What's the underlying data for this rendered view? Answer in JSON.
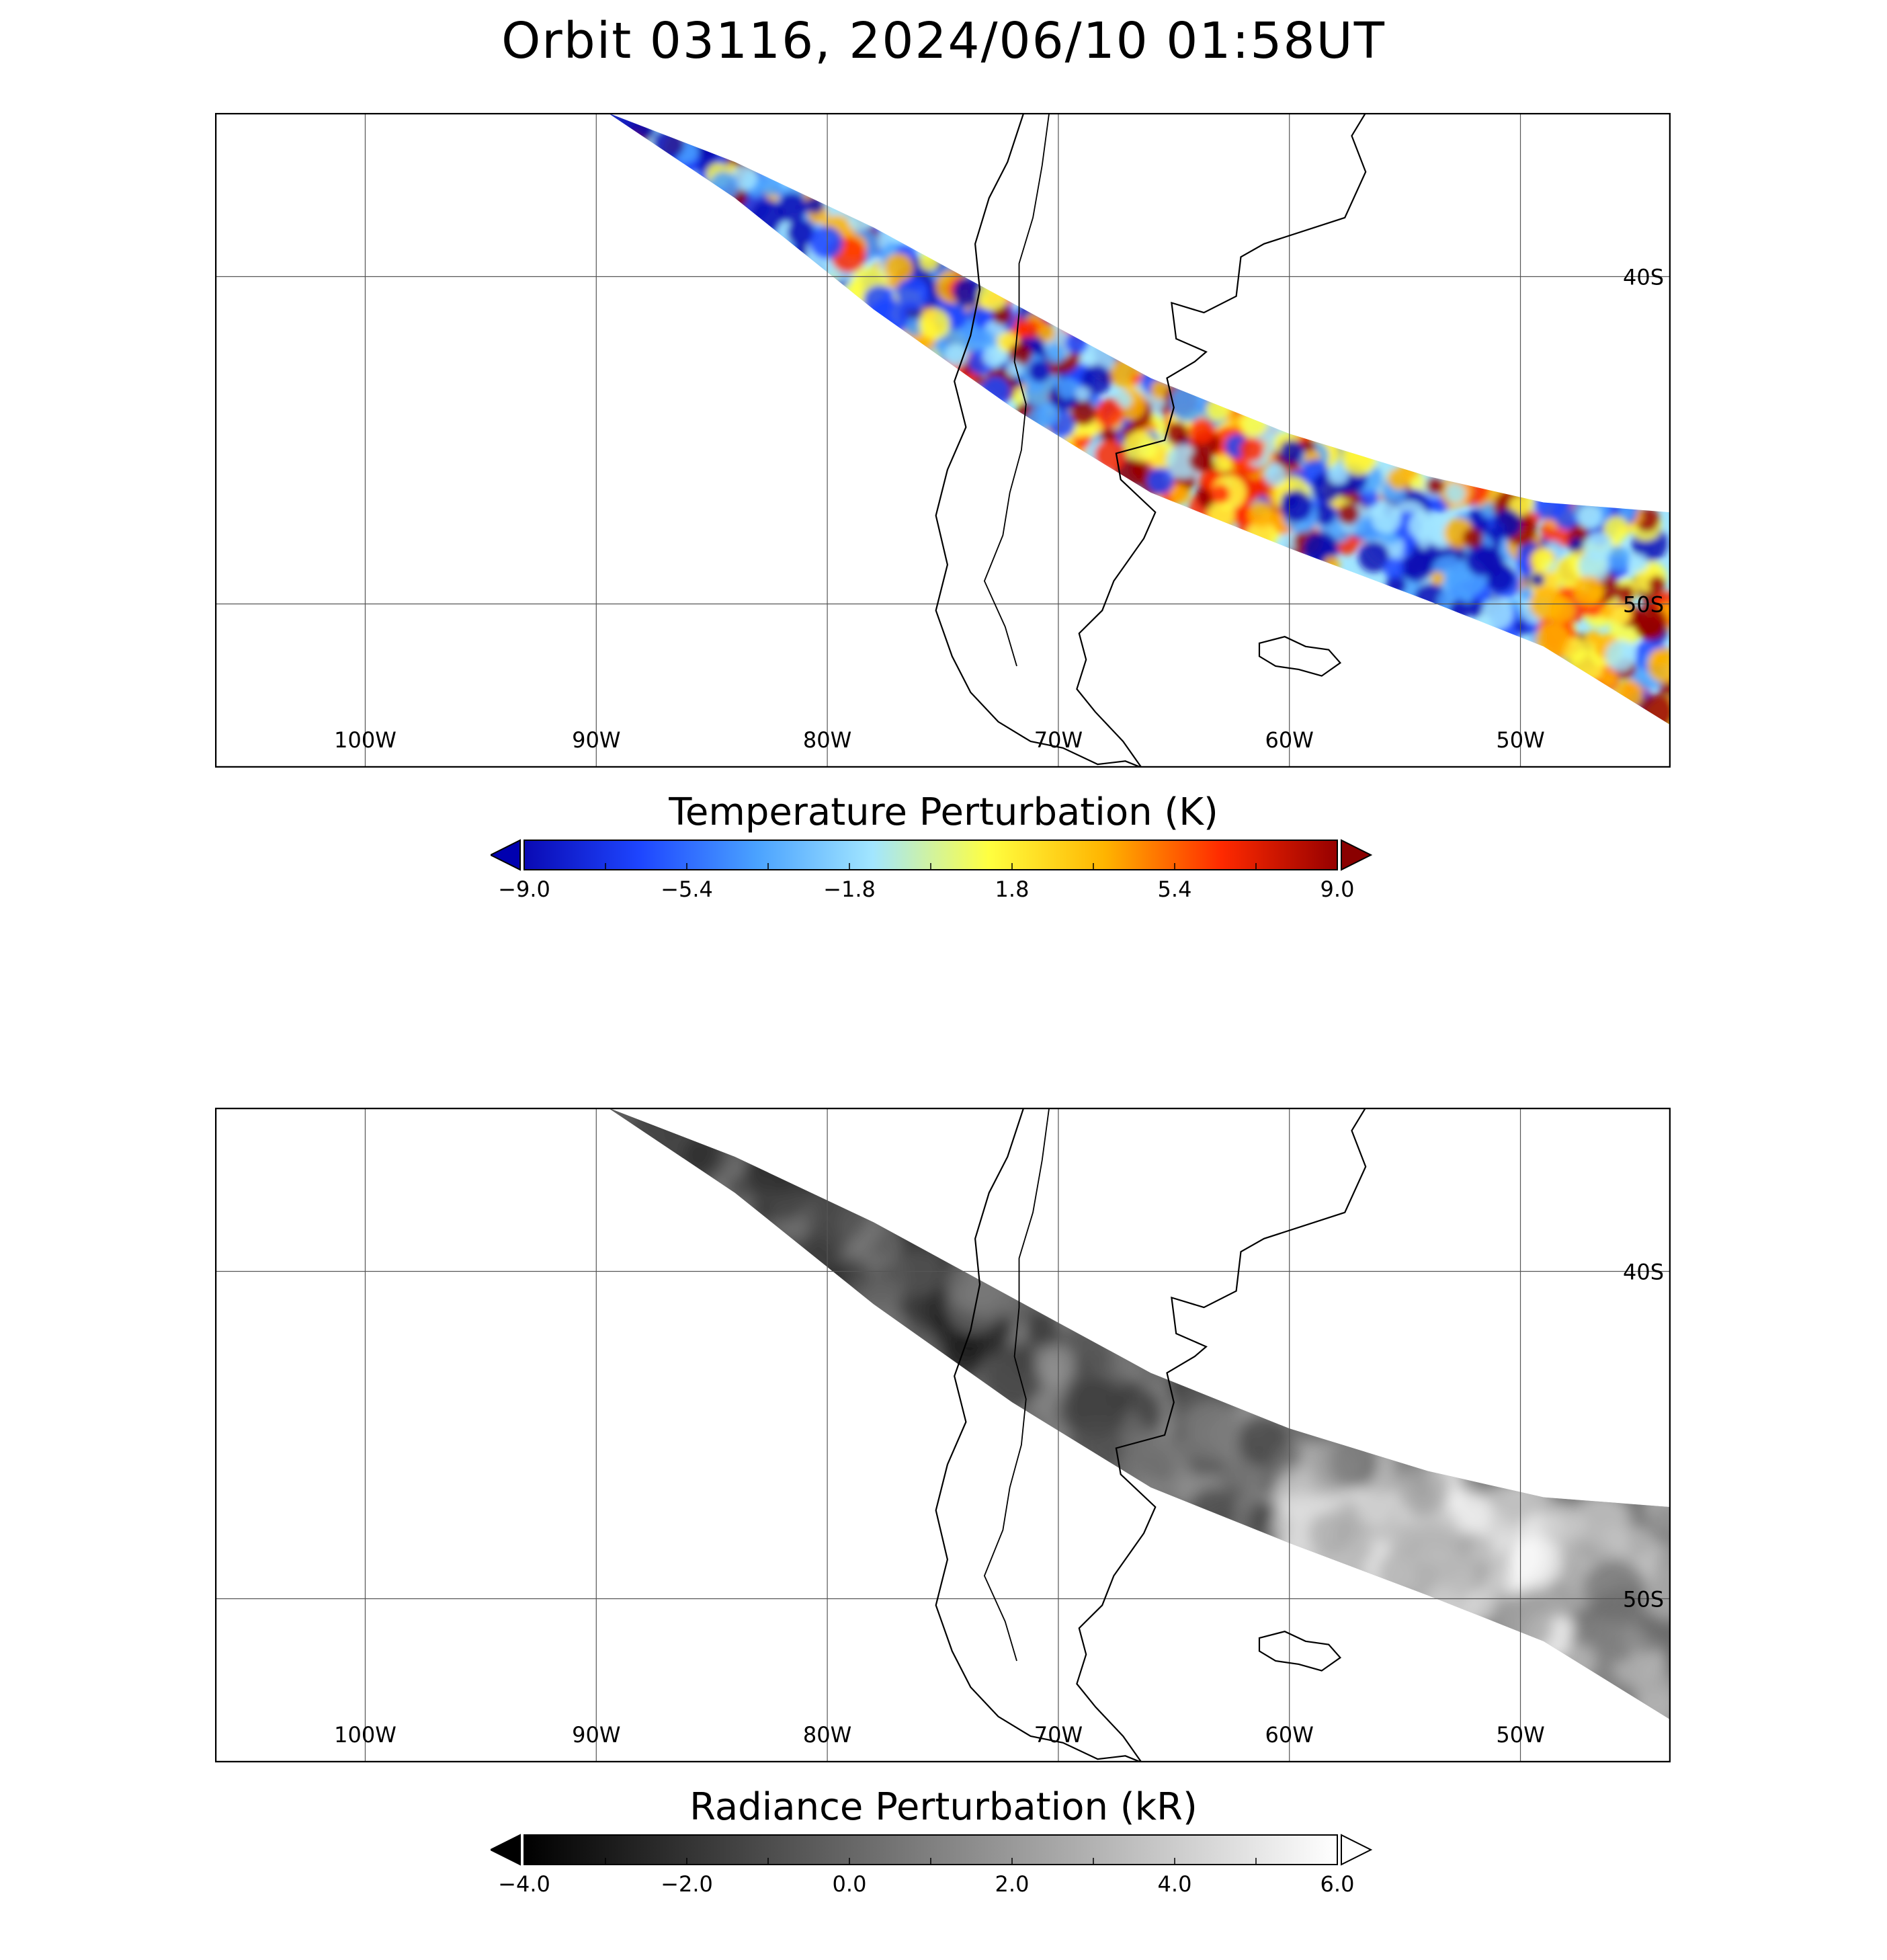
{
  "title": "Orbit 03116, 2024/06/10 01:58UT",
  "map": {
    "lon_range": [
      -106.5,
      -43.5
    ],
    "lat_range": [
      -35,
      -55
    ],
    "lon_ticks": [
      {
        "lon": -100,
        "label": "100W"
      },
      {
        "lon": -90,
        "label": "90W"
      },
      {
        "lon": -80,
        "label": "80W"
      },
      {
        "lon": -70,
        "label": "70W"
      },
      {
        "lon": -60,
        "label": "60W"
      },
      {
        "lon": -50,
        "label": "50W"
      }
    ],
    "lat_ticks": [
      {
        "lat": -40,
        "label": "40S"
      },
      {
        "lat": -50,
        "label": "50S"
      }
    ],
    "swath_lon": [
      -89.5,
      -84,
      -78,
      -72,
      -66,
      -60,
      -54,
      -49,
      -43.5
    ],
    "swath_lat_north": [
      -35,
      -36.5,
      -38.5,
      -40.8,
      -43.1,
      -44.8,
      -46.1,
      -46.9,
      -47.2
    ],
    "swath_lat_south": [
      -35,
      -37.6,
      -41,
      -44,
      -46.6,
      -48.3,
      -49.9,
      -51.3,
      -53.7
    ]
  },
  "panels": [
    {
      "name": "temperature",
      "colorbar_title": "Temperature Perturbation (K)",
      "ticks": [
        "-9.0",
        "-5.4",
        "-1.8",
        "1.8",
        "5.4",
        "9.0"
      ],
      "range": [
        -9,
        9
      ],
      "colors": [
        "#0a0ab4",
        "#1e46ff",
        "#4aa2ff",
        "#a2e6ff",
        "#ffff40",
        "#ffb400",
        "#ff2a00",
        "#960000"
      ],
      "extend_min_color": "#0000b0",
      "extend_max_color": "#8a0000"
    },
    {
      "name": "radiance",
      "colorbar_title": "Radiance Perturbation (kR)",
      "ticks": [
        "-4.0",
        "-2.0",
        "0.0",
        "2.0",
        "4.0",
        "6.0"
      ],
      "range": [
        -4,
        6
      ],
      "colors": [
        "#000000",
        "#ffffff"
      ],
      "extend_min_color": "#000000",
      "extend_max_color": "#ffffff"
    }
  ]
}
